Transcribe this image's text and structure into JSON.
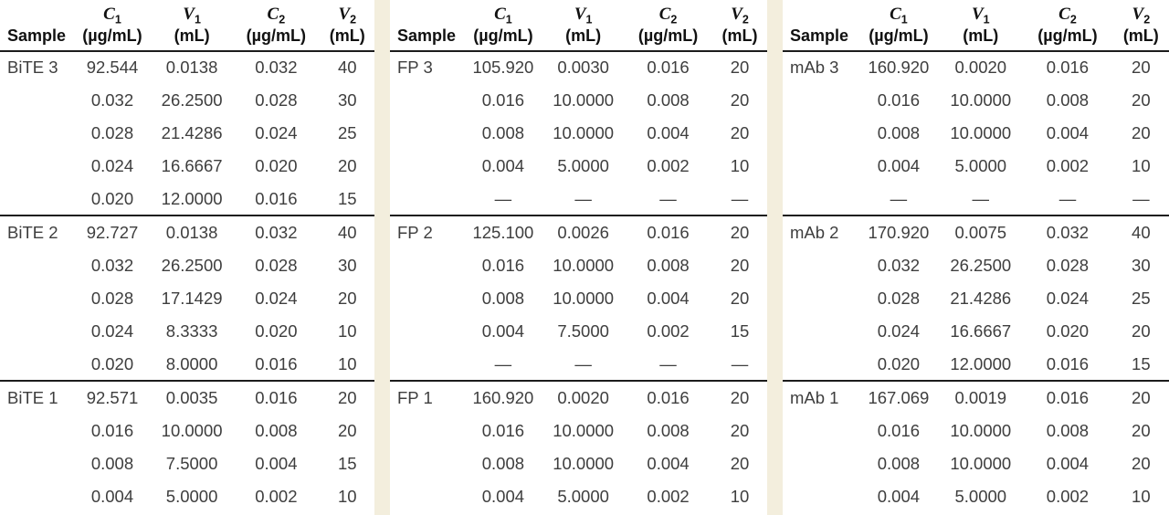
{
  "table": {
    "col_widths": [
      "19.5%",
      "21.0%",
      "21.5%",
      "23.5%",
      "14.5%"
    ],
    "columns": [
      {
        "label": "Sample"
      },
      {
        "symbol": "C",
        "subscript": "1",
        "unit": "(µg/mL)"
      },
      {
        "symbol": "V",
        "subscript": "1",
        "unit": "(mL)"
      },
      {
        "symbol": "C",
        "subscript": "2",
        "unit": "(µg/mL)"
      },
      {
        "symbol": "V",
        "subscript": "2",
        "unit": "(mL)"
      }
    ],
    "panels": [
      {
        "name": "bite",
        "groups": [
          {
            "rows": [
              [
                "BiTE 3",
                "92.544",
                "0.0138",
                "0.032",
                "40"
              ],
              [
                "",
                "0.032",
                "26.2500",
                "0.028",
                "30"
              ],
              [
                "",
                "0.028",
                "21.4286",
                "0.024",
                "25"
              ],
              [
                "",
                "0.024",
                "16.6667",
                "0.020",
                "20"
              ],
              [
                "",
                "0.020",
                "12.0000",
                "0.016",
                "15"
              ]
            ]
          },
          {
            "rows": [
              [
                "BiTE 2",
                "92.727",
                "0.0138",
                "0.032",
                "40"
              ],
              [
                "",
                "0.032",
                "26.2500",
                "0.028",
                "30"
              ],
              [
                "",
                "0.028",
                "17.1429",
                "0.024",
                "20"
              ],
              [
                "",
                "0.024",
                "8.3333",
                "0.020",
                "10"
              ],
              [
                "",
                "0.020",
                "8.0000",
                "0.016",
                "10"
              ]
            ]
          },
          {
            "rows": [
              [
                "BiTE 1",
                "92.571",
                "0.0035",
                "0.016",
                "20"
              ],
              [
                "",
                "0.016",
                "10.0000",
                "0.008",
                "20"
              ],
              [
                "",
                "0.008",
                "7.5000",
                "0.004",
                "15"
              ],
              [
                "",
                "0.004",
                "5.0000",
                "0.002",
                "10"
              ]
            ]
          }
        ]
      },
      {
        "name": "fp",
        "groups": [
          {
            "rows": [
              [
                "FP 3",
                "105.920",
                "0.0030",
                "0.016",
                "20"
              ],
              [
                "",
                "0.016",
                "10.0000",
                "0.008",
                "20"
              ],
              [
                "",
                "0.008",
                "10.0000",
                "0.004",
                "20"
              ],
              [
                "",
                "0.004",
                "5.0000",
                "0.002",
                "10"
              ],
              [
                "",
                "—",
                "—",
                "—",
                "—"
              ]
            ]
          },
          {
            "rows": [
              [
                "FP 2",
                "125.100",
                "0.0026",
                "0.016",
                "20"
              ],
              [
                "",
                "0.016",
                "10.0000",
                "0.008",
                "20"
              ],
              [
                "",
                "0.008",
                "10.0000",
                "0.004",
                "20"
              ],
              [
                "",
                "0.004",
                "7.5000",
                "0.002",
                "15"
              ],
              [
                "",
                "—",
                "—",
                "—",
                "—"
              ]
            ]
          },
          {
            "rows": [
              [
                "FP 1",
                "160.920",
                "0.0020",
                "0.016",
                "20"
              ],
              [
                "",
                "0.016",
                "10.0000",
                "0.008",
                "20"
              ],
              [
                "",
                "0.008",
                "10.0000",
                "0.004",
                "20"
              ],
              [
                "",
                "0.004",
                "5.0000",
                "0.002",
                "10"
              ]
            ]
          }
        ]
      },
      {
        "name": "mab",
        "groups": [
          {
            "rows": [
              [
                "mAb 3",
                "160.920",
                "0.0020",
                "0.016",
                "20"
              ],
              [
                "",
                "0.016",
                "10.0000",
                "0.008",
                "20"
              ],
              [
                "",
                "0.008",
                "10.0000",
                "0.004",
                "20"
              ],
              [
                "",
                "0.004",
                "5.0000",
                "0.002",
                "10"
              ],
              [
                "",
                "—",
                "—",
                "—",
                "—"
              ]
            ]
          },
          {
            "rows": [
              [
                "mAb 2",
                "170.920",
                "0.0075",
                "0.032",
                "40"
              ],
              [
                "",
                "0.032",
                "26.2500",
                "0.028",
                "30"
              ],
              [
                "",
                "0.028",
                "21.4286",
                "0.024",
                "25"
              ],
              [
                "",
                "0.024",
                "16.6667",
                "0.020",
                "20"
              ],
              [
                "",
                "0.020",
                "12.0000",
                "0.016",
                "15"
              ]
            ]
          },
          {
            "rows": [
              [
                "mAb 1",
                "167.069",
                "0.0019",
                "0.016",
                "20"
              ],
              [
                "",
                "0.016",
                "10.0000",
                "0.008",
                "20"
              ],
              [
                "",
                "0.008",
                "10.0000",
                "0.004",
                "20"
              ],
              [
                "",
                "0.004",
                "5.0000",
                "0.002",
                "10"
              ]
            ]
          }
        ]
      }
    ]
  },
  "colors": {
    "separator": "#f3eedd",
    "rule": "#1c1c1c",
    "data_text": "#3e3e3e",
    "header_text": "#111111",
    "background": "#ffffff"
  }
}
